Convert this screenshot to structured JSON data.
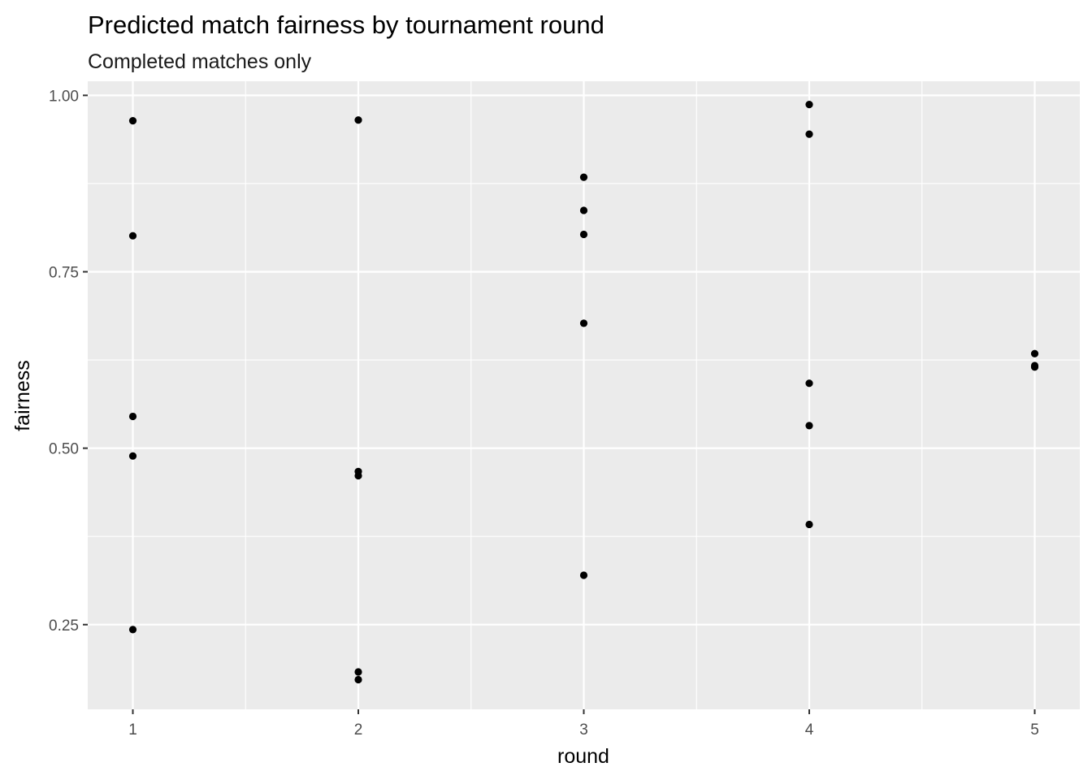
{
  "chart_data": {
    "type": "scatter",
    "title": "Predicted match fairness by tournament round",
    "subtitle": "Completed matches only",
    "xlabel": "round",
    "ylabel": "fairness",
    "xlim": [
      0.8,
      5.2
    ],
    "ylim": [
      0.13,
      1.02
    ],
    "x_ticks": [
      1,
      2,
      3,
      4,
      5
    ],
    "x_tick_labels": [
      "1",
      "2",
      "3",
      "4",
      "5"
    ],
    "y_ticks": [
      0.25,
      0.5,
      0.75,
      1.0
    ],
    "y_tick_labels": [
      "0.25",
      "0.50",
      "0.75",
      "1.00"
    ],
    "grid": true,
    "points": [
      {
        "x": 1,
        "y": 0.964
      },
      {
        "x": 1,
        "y": 0.801
      },
      {
        "x": 1,
        "y": 0.545
      },
      {
        "x": 1,
        "y": 0.489
      },
      {
        "x": 1,
        "y": 0.243
      },
      {
        "x": 2,
        "y": 0.965
      },
      {
        "x": 2,
        "y": 0.467
      },
      {
        "x": 2,
        "y": 0.461
      },
      {
        "x": 2,
        "y": 0.183
      },
      {
        "x": 2,
        "y": 0.172
      },
      {
        "x": 3,
        "y": 0.884
      },
      {
        "x": 3,
        "y": 0.837
      },
      {
        "x": 3,
        "y": 0.803
      },
      {
        "x": 3,
        "y": 0.677
      },
      {
        "x": 3,
        "y": 0.32
      },
      {
        "x": 4,
        "y": 0.987
      },
      {
        "x": 4,
        "y": 0.945
      },
      {
        "x": 4,
        "y": 0.592
      },
      {
        "x": 4,
        "y": 0.532
      },
      {
        "x": 4,
        "y": 0.392
      },
      {
        "x": 5,
        "y": 0.634
      },
      {
        "x": 5,
        "y": 0.617
      },
      {
        "x": 5,
        "y": 0.615
      }
    ],
    "colors": {
      "panel_background": "#ebebeb",
      "grid_line": "#ffffff",
      "point": "#000000",
      "tick": "#333333"
    }
  }
}
